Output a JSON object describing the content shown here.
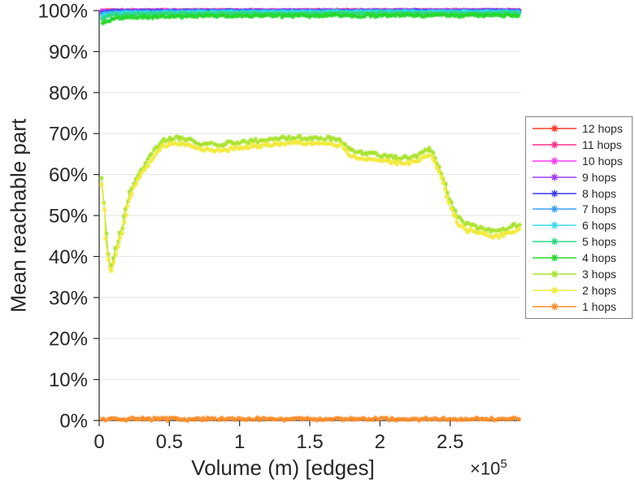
{
  "figure": {
    "background": "#ffffff"
  },
  "chart_data": {
    "type": "line",
    "title": "",
    "xlabel": "Volume (m) [edges]",
    "ylabel": "Mean reachable part",
    "x_exponent_base": "×10",
    "x_exponent_power": "5",
    "x_scale_factor": 100000,
    "xlim": [
      0,
      3.0
    ],
    "ylim": [
      0,
      100
    ],
    "xticks": {
      "values": [
        0,
        0.5,
        1,
        1.5,
        2,
        2.5
      ],
      "labels": [
        "0",
        "0.5",
        "1",
        "1.5",
        "2",
        "2.5"
      ]
    },
    "yticks": {
      "values": [
        0,
        10,
        20,
        30,
        40,
        50,
        60,
        70,
        80,
        90,
        100
      ],
      "labels": [
        "0%",
        "10%",
        "20%",
        "30%",
        "40%",
        "50%",
        "60%",
        "70%",
        "80%",
        "90%",
        "100%"
      ]
    },
    "grid": "horizontal",
    "axis_color": "#262626",
    "grid_color": "#e2e2e2",
    "text_color": "#262626",
    "legend_position": "right-outside",
    "marker": "asterisk",
    "samples_per_series": 210,
    "series": [
      {
        "name": "12 hops",
        "color": "#fb3b28",
        "jitter": 0.1,
        "points": [
          [
            0.02,
            99.97
          ],
          [
            2.99,
            100
          ]
        ]
      },
      {
        "name": "11 hops",
        "color": "#fb2e8e",
        "jitter": 0.1,
        "points": [
          [
            0.02,
            99.9
          ],
          [
            2.99,
            99.99
          ]
        ]
      },
      {
        "name": "10 hops",
        "color": "#f73bf7",
        "jitter": 0.1,
        "points": [
          [
            0.02,
            99.85
          ],
          [
            0.2,
            99.95
          ],
          [
            2.99,
            99.98
          ]
        ]
      },
      {
        "name": "9 hops",
        "color": "#9b3bf2",
        "jitter": 0.1,
        "points": [
          [
            0.02,
            99.7
          ],
          [
            0.15,
            99.9
          ],
          [
            2.99,
            99.95
          ]
        ]
      },
      {
        "name": "8 hops",
        "color": "#3f3bf2",
        "jitter": 0.12,
        "points": [
          [
            0.02,
            99.5
          ],
          [
            0.1,
            99.75
          ],
          [
            0.4,
            99.85
          ],
          [
            2.99,
            99.9
          ]
        ]
      },
      {
        "name": "7 hops",
        "color": "#3b9df8",
        "jitter": 0.12,
        "points": [
          [
            0.02,
            99.2
          ],
          [
            0.08,
            99.5
          ],
          [
            0.2,
            99.65
          ],
          [
            0.6,
            99.75
          ],
          [
            2.99,
            99.8
          ]
        ]
      },
      {
        "name": "6 hops",
        "color": "#35dcf2",
        "jitter": 0.15,
        "points": [
          [
            0.02,
            98.7
          ],
          [
            0.06,
            99.1
          ],
          [
            0.15,
            99.35
          ],
          [
            0.4,
            99.5
          ],
          [
            1.0,
            99.6
          ],
          [
            2.99,
            99.65
          ]
        ]
      },
      {
        "name": "5 hops",
        "color": "#2eda85",
        "jitter": 0.18,
        "points": [
          [
            0.02,
            98.1
          ],
          [
            0.06,
            98.6
          ],
          [
            0.12,
            98.9
          ],
          [
            0.25,
            99.05
          ],
          [
            0.5,
            99.2
          ],
          [
            1.0,
            99.3
          ],
          [
            2.99,
            99.35
          ]
        ]
      },
      {
        "name": "4 hops",
        "color": "#27d82d",
        "jitter": 0.22,
        "points": [
          [
            0.02,
            97.0
          ],
          [
            0.05,
            97.4
          ],
          [
            0.1,
            97.9
          ],
          [
            0.16,
            98.1
          ],
          [
            0.25,
            98.35
          ],
          [
            0.4,
            98.5
          ],
          [
            0.6,
            98.6
          ],
          [
            0.9,
            98.65
          ],
          [
            1.3,
            98.75
          ],
          [
            1.8,
            98.8
          ],
          [
            2.3,
            98.8
          ],
          [
            2.99,
            98.85
          ]
        ]
      },
      {
        "name": "3 hops",
        "color": "#a8e32e",
        "jitter": 0.3,
        "points": [
          [
            0.02,
            58.8
          ],
          [
            0.03,
            55.0
          ],
          [
            0.05,
            45.0
          ],
          [
            0.07,
            38.5
          ],
          [
            0.085,
            36.8
          ],
          [
            0.1,
            39.0
          ],
          [
            0.115,
            41.5
          ],
          [
            0.13,
            43.2
          ],
          [
            0.15,
            45.8
          ],
          [
            0.165,
            47.0
          ],
          [
            0.18,
            50.5
          ],
          [
            0.2,
            53.0
          ],
          [
            0.22,
            55.5
          ],
          [
            0.24,
            57.5
          ],
          [
            0.26,
            59.0
          ],
          [
            0.28,
            60.3
          ],
          [
            0.31,
            61.8
          ],
          [
            0.34,
            63.2
          ],
          [
            0.37,
            64.8
          ],
          [
            0.4,
            66.2
          ],
          [
            0.43,
            67.3
          ],
          [
            0.46,
            68.2
          ],
          [
            0.5,
            68.7
          ],
          [
            0.54,
            68.9
          ],
          [
            0.58,
            69.0
          ],
          [
            0.62,
            68.6
          ],
          [
            0.66,
            68.1
          ],
          [
            0.7,
            67.7
          ],
          [
            0.74,
            67.3
          ],
          [
            0.78,
            67.6
          ],
          [
            0.82,
            67.2
          ],
          [
            0.86,
            67.0
          ],
          [
            0.9,
            67.4
          ],
          [
            0.95,
            67.7
          ],
          [
            1.0,
            67.8
          ],
          [
            1.05,
            68.0
          ],
          [
            1.1,
            68.2
          ],
          [
            1.15,
            68.3
          ],
          [
            1.2,
            68.4
          ],
          [
            1.28,
            68.7
          ],
          [
            1.35,
            69.0
          ],
          [
            1.42,
            69.1
          ],
          [
            1.48,
            68.9
          ],
          [
            1.55,
            68.9
          ],
          [
            1.62,
            68.7
          ],
          [
            1.68,
            68.5
          ],
          [
            1.73,
            68.2
          ],
          [
            1.76,
            67.2
          ],
          [
            1.79,
            65.8
          ],
          [
            1.83,
            65.5
          ],
          [
            1.88,
            65.2
          ],
          [
            1.95,
            65.0
          ],
          [
            2.02,
            64.7
          ],
          [
            2.08,
            64.4
          ],
          [
            2.14,
            64.0
          ],
          [
            2.2,
            64.1
          ],
          [
            2.26,
            64.5
          ],
          [
            2.31,
            65.4
          ],
          [
            2.35,
            66.2
          ],
          [
            2.38,
            65.2
          ],
          [
            2.42,
            62.0
          ],
          [
            2.46,
            58.0
          ],
          [
            2.5,
            53.5
          ],
          [
            2.54,
            50.5
          ],
          [
            2.58,
            48.6
          ],
          [
            2.62,
            47.8
          ],
          [
            2.66,
            47.4
          ],
          [
            2.7,
            47.1
          ],
          [
            2.75,
            46.7
          ],
          [
            2.8,
            46.4
          ],
          [
            2.85,
            46.2
          ],
          [
            2.9,
            46.7
          ],
          [
            2.94,
            47.3
          ],
          [
            2.99,
            47.9
          ]
        ]
      },
      {
        "name": "2 hops",
        "color": "#f2ea39",
        "jitter": 0.3,
        "points": [
          [
            0.02,
            57.2
          ],
          [
            0.03,
            53.6
          ],
          [
            0.05,
            43.8
          ],
          [
            0.07,
            37.2
          ],
          [
            0.085,
            35.8
          ],
          [
            0.1,
            37.8
          ],
          [
            0.115,
            40.2
          ],
          [
            0.13,
            41.9
          ],
          [
            0.15,
            44.5
          ],
          [
            0.165,
            45.7
          ],
          [
            0.18,
            49.2
          ],
          [
            0.2,
            51.7
          ],
          [
            0.22,
            54.2
          ],
          [
            0.24,
            56.2
          ],
          [
            0.26,
            57.7
          ],
          [
            0.28,
            59.0
          ],
          [
            0.31,
            60.5
          ],
          [
            0.34,
            61.9
          ],
          [
            0.37,
            63.5
          ],
          [
            0.4,
            64.9
          ],
          [
            0.43,
            66.0
          ],
          [
            0.46,
            66.9
          ],
          [
            0.5,
            67.4
          ],
          [
            0.54,
            67.6
          ],
          [
            0.58,
            67.7
          ],
          [
            0.62,
            67.3
          ],
          [
            0.66,
            66.8
          ],
          [
            0.7,
            66.4
          ],
          [
            0.74,
            66.0
          ],
          [
            0.78,
            66.3
          ],
          [
            0.82,
            65.9
          ],
          [
            0.86,
            65.7
          ],
          [
            0.9,
            66.1
          ],
          [
            0.95,
            66.4
          ],
          [
            1.0,
            66.5
          ],
          [
            1.05,
            66.7
          ],
          [
            1.1,
            66.9
          ],
          [
            1.15,
            67.0
          ],
          [
            1.2,
            67.1
          ],
          [
            1.28,
            67.4
          ],
          [
            1.35,
            67.7
          ],
          [
            1.42,
            67.8
          ],
          [
            1.48,
            67.6
          ],
          [
            1.55,
            67.6
          ],
          [
            1.62,
            67.4
          ],
          [
            1.68,
            67.2
          ],
          [
            1.73,
            66.9
          ],
          [
            1.76,
            65.9
          ],
          [
            1.79,
            64.5
          ],
          [
            1.83,
            64.2
          ],
          [
            1.88,
            63.9
          ],
          [
            1.95,
            63.7
          ],
          [
            2.02,
            63.4
          ],
          [
            2.08,
            63.1
          ],
          [
            2.14,
            62.7
          ],
          [
            2.2,
            62.8
          ],
          [
            2.26,
            63.2
          ],
          [
            2.31,
            64.1
          ],
          [
            2.35,
            64.9
          ],
          [
            2.38,
            63.9
          ],
          [
            2.42,
            60.7
          ],
          [
            2.46,
            56.7
          ],
          [
            2.5,
            52.2
          ],
          [
            2.54,
            49.2
          ],
          [
            2.58,
            47.3
          ],
          [
            2.62,
            46.5
          ],
          [
            2.66,
            46.1
          ],
          [
            2.7,
            45.8
          ],
          [
            2.75,
            45.4
          ],
          [
            2.8,
            45.1
          ],
          [
            2.85,
            44.9
          ],
          [
            2.9,
            45.4
          ],
          [
            2.94,
            46.0
          ],
          [
            2.99,
            46.6
          ]
        ]
      },
      {
        "name": "1 hops",
        "color": "#fb8d2a",
        "jitter": 0.22,
        "points": [
          [
            0.02,
            0.35
          ],
          [
            2.99,
            0.35
          ]
        ]
      }
    ]
  }
}
